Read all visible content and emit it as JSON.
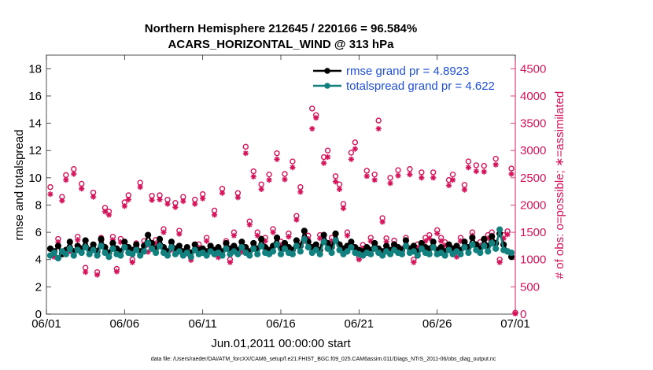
{
  "chart_data": {
    "type": "line",
    "title": "Northern Hemisphere 212645 / 220166 = 96.584%",
    "subtitle": "ACARS_HORIZONTAL_WIND @ 313 hPa",
    "xlabel": "Jun.01,2011 00:00:00 start",
    "ylabel": "rmse and totalspread",
    "ylabel_right": "# of obs: o=possible; ∗=assimilated",
    "footer": "data file: /Users/raeder/DAI/ATM_forcXX/CAM6_setup/f.e21.FHIST_BGC.f09_025.CAM6assim.011/Diags_NTrS_2011-06/obs_diag_output.nc",
    "x_ticks": [
      {
        "day": 0,
        "label": "06/01"
      },
      {
        "day": 5,
        "label": "06/06"
      },
      {
        "day": 10,
        "label": "06/11"
      },
      {
        "day": 15,
        "label": "06/16"
      },
      {
        "day": 20,
        "label": "06/21"
      },
      {
        "day": 25,
        "label": "06/26"
      },
      {
        "day": 30,
        "label": "07/01"
      }
    ],
    "xlim": [
      0,
      30
    ],
    "ylim": [
      0,
      19
    ],
    "yticks": [
      0,
      2,
      4,
      6,
      8,
      10,
      12,
      14,
      16,
      18
    ],
    "ylim_right": [
      0,
      4750
    ],
    "yticks_right": [
      0,
      500,
      1000,
      1500,
      2000,
      2500,
      3000,
      3500,
      4000,
      4500
    ],
    "legend_position": "top-right",
    "series": [
      {
        "name": "rmse grand pr = 4.8923",
        "color": "#000000",
        "axis": "left",
        "x": [
          0.25,
          0.5,
          0.75,
          1,
          1.25,
          1.5,
          1.75,
          2,
          2.25,
          2.5,
          2.75,
          3,
          3.25,
          3.5,
          3.75,
          4,
          4.25,
          4.5,
          4.75,
          5,
          5.25,
          5.5,
          5.75,
          6,
          6.25,
          6.5,
          6.75,
          7,
          7.25,
          7.5,
          7.75,
          8,
          8.25,
          8.5,
          8.75,
          9,
          9.25,
          9.5,
          9.75,
          10,
          10.25,
          10.5,
          10.75,
          11,
          11.25,
          11.5,
          11.75,
          12,
          12.25,
          12.5,
          12.75,
          13,
          13.25,
          13.5,
          13.75,
          14,
          14.25,
          14.5,
          14.75,
          15,
          15.25,
          15.5,
          15.75,
          16,
          16.25,
          16.5,
          16.75,
          17,
          17.25,
          17.5,
          17.75,
          18,
          18.25,
          18.5,
          18.75,
          19,
          19.25,
          19.5,
          19.75,
          20,
          20.25,
          20.5,
          20.75,
          21,
          21.25,
          21.5,
          21.75,
          22,
          22.25,
          22.5,
          22.75,
          23,
          23.25,
          23.5,
          23.75,
          24,
          24.25,
          24.5,
          24.75,
          25,
          25.25,
          25.5,
          25.75,
          26,
          26.25,
          26.5,
          26.75,
          27,
          27.25,
          27.5,
          27.75,
          28,
          28.25,
          28.5,
          28.75,
          29,
          29.25,
          29.5,
          29.75
        ],
        "values": [
          4.8,
          4.6,
          5.0,
          4.4,
          4.7,
          5.3,
          4.6,
          5.0,
          4.8,
          5.4,
          4.7,
          5.1,
          4.6,
          5.5,
          4.9,
          4.5,
          5.2,
          4.8,
          4.6,
          5.3,
          4.9,
          4.7,
          5.1,
          4.6,
          5.0,
          5.8,
          5.2,
          4.8,
          5.5,
          4.9,
          4.6,
          5.3,
          4.8,
          5.0,
          4.6,
          4.9,
          4.5,
          5.1,
          4.7,
          4.8,
          4.6,
          5.0,
          4.7,
          4.9,
          4.6,
          5.2,
          4.8,
          5.0,
          4.7,
          5.3,
          4.9,
          4.6,
          5.2,
          4.8,
          5.5,
          4.9,
          4.7,
          5.0,
          5.6,
          4.8,
          5.2,
          4.9,
          4.7,
          5.4,
          5.0,
          6.1,
          5.3,
          4.9,
          5.1,
          4.7,
          5.8,
          5.2,
          4.9,
          5.9,
          5.1,
          4.8,
          5.0,
          5.3,
          4.9,
          4.7,
          4.6,
          4.9,
          4.7,
          5.2,
          4.8,
          4.6,
          5.0,
          4.7,
          5.1,
          4.9,
          4.7,
          5.4,
          4.8,
          5.0,
          4.6,
          5.2,
          4.9,
          4.8,
          5.3,
          4.7,
          4.9,
          4.6,
          5.1,
          4.8,
          5.0,
          4.7,
          5.3,
          4.9,
          5.6,
          5.1,
          4.8,
          5.5,
          5.0,
          5.7,
          5.2,
          5.9,
          5.1,
          4.6,
          4.2
        ]
      },
      {
        "name": "totalspread grand pr = 4.622",
        "color": "#12807e",
        "axis": "left",
        "x": [
          0.25,
          0.5,
          0.75,
          1,
          1.25,
          1.5,
          1.75,
          2,
          2.25,
          2.5,
          2.75,
          3,
          3.25,
          3.5,
          3.75,
          4,
          4.25,
          4.5,
          4.75,
          5,
          5.25,
          5.5,
          5.75,
          6,
          6.25,
          6.5,
          6.75,
          7,
          7.25,
          7.5,
          7.75,
          8,
          8.25,
          8.5,
          8.75,
          9,
          9.25,
          9.5,
          9.75,
          10,
          10.25,
          10.5,
          10.75,
          11,
          11.25,
          11.5,
          11.75,
          12,
          12.25,
          12.5,
          12.75,
          13,
          13.25,
          13.5,
          13.75,
          14,
          14.25,
          14.5,
          14.75,
          15,
          15.25,
          15.5,
          15.75,
          16,
          16.25,
          16.5,
          16.75,
          17,
          17.25,
          17.5,
          17.75,
          18,
          18.25,
          18.5,
          18.75,
          19,
          19.25,
          19.5,
          19.75,
          20,
          20.25,
          20.5,
          20.75,
          21,
          21.25,
          21.5,
          21.75,
          22,
          22.25,
          22.5,
          22.75,
          23,
          23.25,
          23.5,
          23.75,
          24,
          24.25,
          24.5,
          24.75,
          25,
          25.25,
          25.5,
          25.75,
          26,
          26.25,
          26.5,
          26.75,
          27,
          27.25,
          27.5,
          27.75,
          28,
          28.25,
          28.5,
          28.75,
          29,
          29.25,
          29.5,
          29.75
        ],
        "values": [
          4.3,
          4.5,
          4.1,
          4.6,
          4.4,
          4.8,
          4.3,
          4.7,
          4.5,
          4.9,
          4.4,
          4.7,
          4.3,
          5.0,
          4.5,
          4.2,
          4.8,
          4.4,
          4.3,
          4.9,
          4.5,
          4.4,
          4.7,
          4.3,
          4.6,
          5.2,
          4.8,
          4.5,
          5.0,
          4.5,
          4.3,
          4.9,
          4.4,
          4.6,
          4.3,
          4.5,
          4.2,
          4.7,
          4.4,
          4.5,
          4.3,
          4.6,
          4.4,
          4.5,
          4.3,
          4.8,
          4.4,
          4.6,
          4.4,
          4.9,
          4.5,
          4.3,
          4.8,
          4.4,
          5.0,
          4.5,
          4.4,
          4.6,
          5.1,
          4.4,
          4.8,
          4.5,
          4.4,
          5.0,
          4.6,
          5.5,
          4.9,
          4.5,
          4.7,
          4.4,
          5.3,
          4.8,
          4.5,
          5.4,
          4.7,
          4.4,
          4.6,
          4.9,
          4.5,
          4.4,
          4.3,
          4.5,
          4.4,
          4.8,
          4.5,
          4.3,
          4.6,
          4.4,
          4.7,
          4.5,
          4.4,
          5.0,
          4.5,
          4.6,
          4.3,
          4.8,
          4.5,
          4.4,
          4.9,
          4.4,
          4.5,
          4.3,
          4.7,
          4.4,
          4.6,
          4.4,
          4.9,
          4.5,
          5.1,
          4.7,
          4.5,
          5.0,
          4.6,
          5.2,
          4.8,
          6.2,
          4.7,
          4.6,
          4.5
        ]
      },
      {
        "name": "possible obs",
        "color": "#d4145a",
        "marker": "o",
        "axis": "right",
        "x": [
          0.25,
          0.5,
          0.75,
          1,
          1.25,
          1.5,
          1.75,
          2,
          2.25,
          2.5,
          2.75,
          3,
          3.25,
          3.5,
          3.75,
          4,
          4.25,
          4.5,
          4.75,
          5,
          5.25,
          5.5,
          5.75,
          6,
          6.25,
          6.5,
          6.75,
          7,
          7.25,
          7.5,
          7.75,
          8,
          8.25,
          8.5,
          8.75,
          9,
          9.25,
          9.5,
          9.75,
          10,
          10.25,
          10.5,
          10.75,
          11,
          11.25,
          11.5,
          11.75,
          12,
          12.25,
          12.5,
          12.75,
          13,
          13.25,
          13.5,
          13.75,
          14,
          14.25,
          14.5,
          14.75,
          15,
          15.25,
          15.5,
          15.75,
          16,
          16.25,
          16.5,
          16.75,
          17,
          17.25,
          17.5,
          17.75,
          18,
          18.25,
          18.5,
          18.75,
          19,
          19.25,
          19.5,
          19.75,
          20,
          20.25,
          20.5,
          20.75,
          21,
          21.25,
          21.5,
          21.75,
          22,
          22.25,
          22.5,
          22.75,
          23,
          23.25,
          23.5,
          23.75,
          24,
          24.25,
          24.5,
          24.75,
          25,
          25.25,
          25.5,
          25.75,
          26,
          26.25,
          26.5,
          26.75,
          27,
          27.25,
          27.5,
          27.75,
          28,
          28.25,
          28.5,
          28.75,
          29,
          29.25,
          29.5,
          29.75,
          30
        ],
        "values": [
          2330,
          1110,
          1380,
          2150,
          2550,
          1200,
          2660,
          1420,
          2390,
          850,
          1180,
          2230,
          770,
          1400,
          1950,
          1880,
          1420,
          830,
          1380,
          2050,
          2180,
          1000,
          1300,
          2410,
          1340,
          1190,
          2170,
          1360,
          2180,
          1560,
          2100,
          1240,
          2040,
          1530,
          2150,
          1160,
          1040,
          2100,
          1280,
          2200,
          1400,
          1220,
          1900,
          1100,
          2300,
          1340,
          1000,
          1500,
          2220,
          1200,
          3070,
          1700,
          2620,
          1500,
          2380,
          1400,
          2560,
          1560,
          2950,
          1330,
          2570,
          1480,
          2800,
          1800,
          2330,
          1400,
          1440,
          3770,
          3650,
          1450,
          2880,
          3000,
          1400,
          2530,
          2380,
          2020,
          1500,
          2960,
          3150,
          1050,
          1270,
          2630,
          1400,
          2560,
          3550,
          1760,
          1390,
          2500,
          1350,
          2640,
          1200,
          1400,
          2660,
          1000,
          1280,
          2600,
          1400,
          1450,
          2600,
          1540,
          1400,
          1320,
          2460,
          2560,
          1100,
          1400,
          2370,
          2800,
          1500,
          2730,
          1320,
          2720,
          1450,
          1500,
          2850,
          1000,
          1450,
          1520,
          2670,
          25
        ]
      },
      {
        "name": "assimilated obs",
        "color": "#d4145a",
        "marker": "*",
        "axis": "right",
        "x": [
          0.25,
          0.5,
          0.75,
          1,
          1.25,
          1.5,
          1.75,
          2,
          2.25,
          2.5,
          2.75,
          3,
          3.25,
          3.5,
          3.75,
          4,
          4.25,
          4.5,
          4.75,
          5,
          5.25,
          5.5,
          5.75,
          6,
          6.25,
          6.5,
          6.75,
          7,
          7.25,
          7.5,
          7.75,
          8,
          8.25,
          8.5,
          8.75,
          9,
          9.25,
          9.5,
          9.75,
          10,
          10.25,
          10.5,
          10.75,
          11,
          11.25,
          11.5,
          11.75,
          12,
          12.25,
          12.5,
          12.75,
          13,
          13.25,
          13.5,
          13.75,
          14,
          14.25,
          14.5,
          14.75,
          15,
          15.25,
          15.5,
          15.75,
          16,
          16.25,
          16.5,
          16.75,
          17,
          17.25,
          17.5,
          17.75,
          18,
          18.25,
          18.5,
          18.75,
          19,
          19.25,
          19.5,
          19.75,
          20,
          20.25,
          20.5,
          20.75,
          21,
          21.25,
          21.5,
          21.75,
          22,
          22.25,
          22.5,
          22.75,
          23,
          23.25,
          23.5,
          23.75,
          24,
          24.25,
          24.5,
          24.75,
          25,
          25.25,
          25.5,
          25.75,
          26,
          26.25,
          26.5,
          26.75,
          27,
          27.25,
          27.5,
          27.75,
          28,
          28.25,
          28.5,
          28.75,
          29,
          29.25,
          29.5,
          29.75,
          30
        ],
        "values": [
          2200,
          1050,
          1320,
          2080,
          2460,
          1150,
          2570,
          1360,
          2300,
          770,
          1120,
          2150,
          720,
          1340,
          1880,
          1820,
          1360,
          780,
          1320,
          1980,
          2100,
          950,
          1240,
          2330,
          1280,
          1140,
          2090,
          1300,
          2100,
          1500,
          2020,
          1180,
          1960,
          1470,
          2070,
          1110,
          990,
          2020,
          1220,
          2120,
          1340,
          1160,
          1820,
          1040,
          2220,
          1280,
          950,
          1440,
          2140,
          1140,
          2950,
          1640,
          2520,
          1440,
          2290,
          1340,
          2460,
          1500,
          2840,
          1270,
          2470,
          1420,
          2690,
          1730,
          2240,
          1340,
          1380,
          3400,
          3600,
          1390,
          2770,
          2880,
          1340,
          2430,
          2290,
          1940,
          1440,
          2840,
          3030,
          1000,
          1210,
          2530,
          1340,
          2460,
          3400,
          1690,
          1330,
          2400,
          1290,
          2540,
          1140,
          1340,
          2560,
          950,
          1220,
          2500,
          1340,
          1390,
          2500,
          1480,
          1340,
          1260,
          2360,
          2460,
          1050,
          1340,
          2280,
          2690,
          1440,
          2620,
          1260,
          2610,
          1390,
          1440,
          2740,
          950,
          1390,
          1460,
          2570,
          10
        ]
      }
    ]
  }
}
